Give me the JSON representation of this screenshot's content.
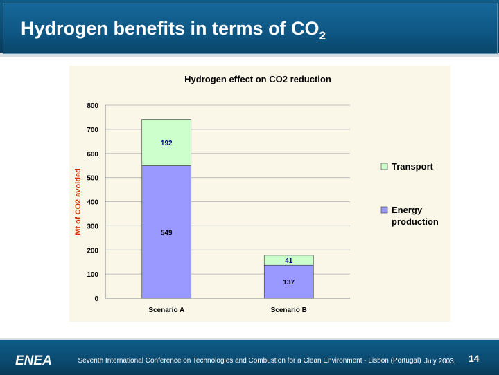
{
  "slide": {
    "title": "Hydrogen benefits in terms of CO",
    "title_subscript": "2",
    "footer_text": "Seventh International Conference on Technologies and Combustion for a Clean Environment - Lisbon (Portugal)",
    "footer_date": "July 2003,",
    "page_number": "14",
    "logo_text": "ENEA",
    "colors": {
      "header_blue": "#0e5683",
      "transport": "#ccffcc",
      "energy": "#9999ff",
      "panel_bg": "#faf7e8"
    }
  },
  "chart_data": {
    "type": "bar",
    "stacked": true,
    "title": "Hydrogen effect on CO2 reduction",
    "xlabel": "",
    "ylabel": "Mt of CO2 avoided",
    "categories": [
      "Scenario A",
      "Scenario B"
    ],
    "series": [
      {
        "name": "Energy production",
        "values": [
          549,
          137
        ],
        "color": "#9999ff"
      },
      {
        "name": "Transport",
        "values": [
          192,
          41
        ],
        "color": "#ccffcc"
      }
    ],
    "ylim": [
      0,
      800
    ],
    "yticks": [
      "0",
      "100",
      "200",
      "300",
      "400",
      "500",
      "600",
      "700",
      "800"
    ],
    "legend_position": "right",
    "grid": true
  }
}
